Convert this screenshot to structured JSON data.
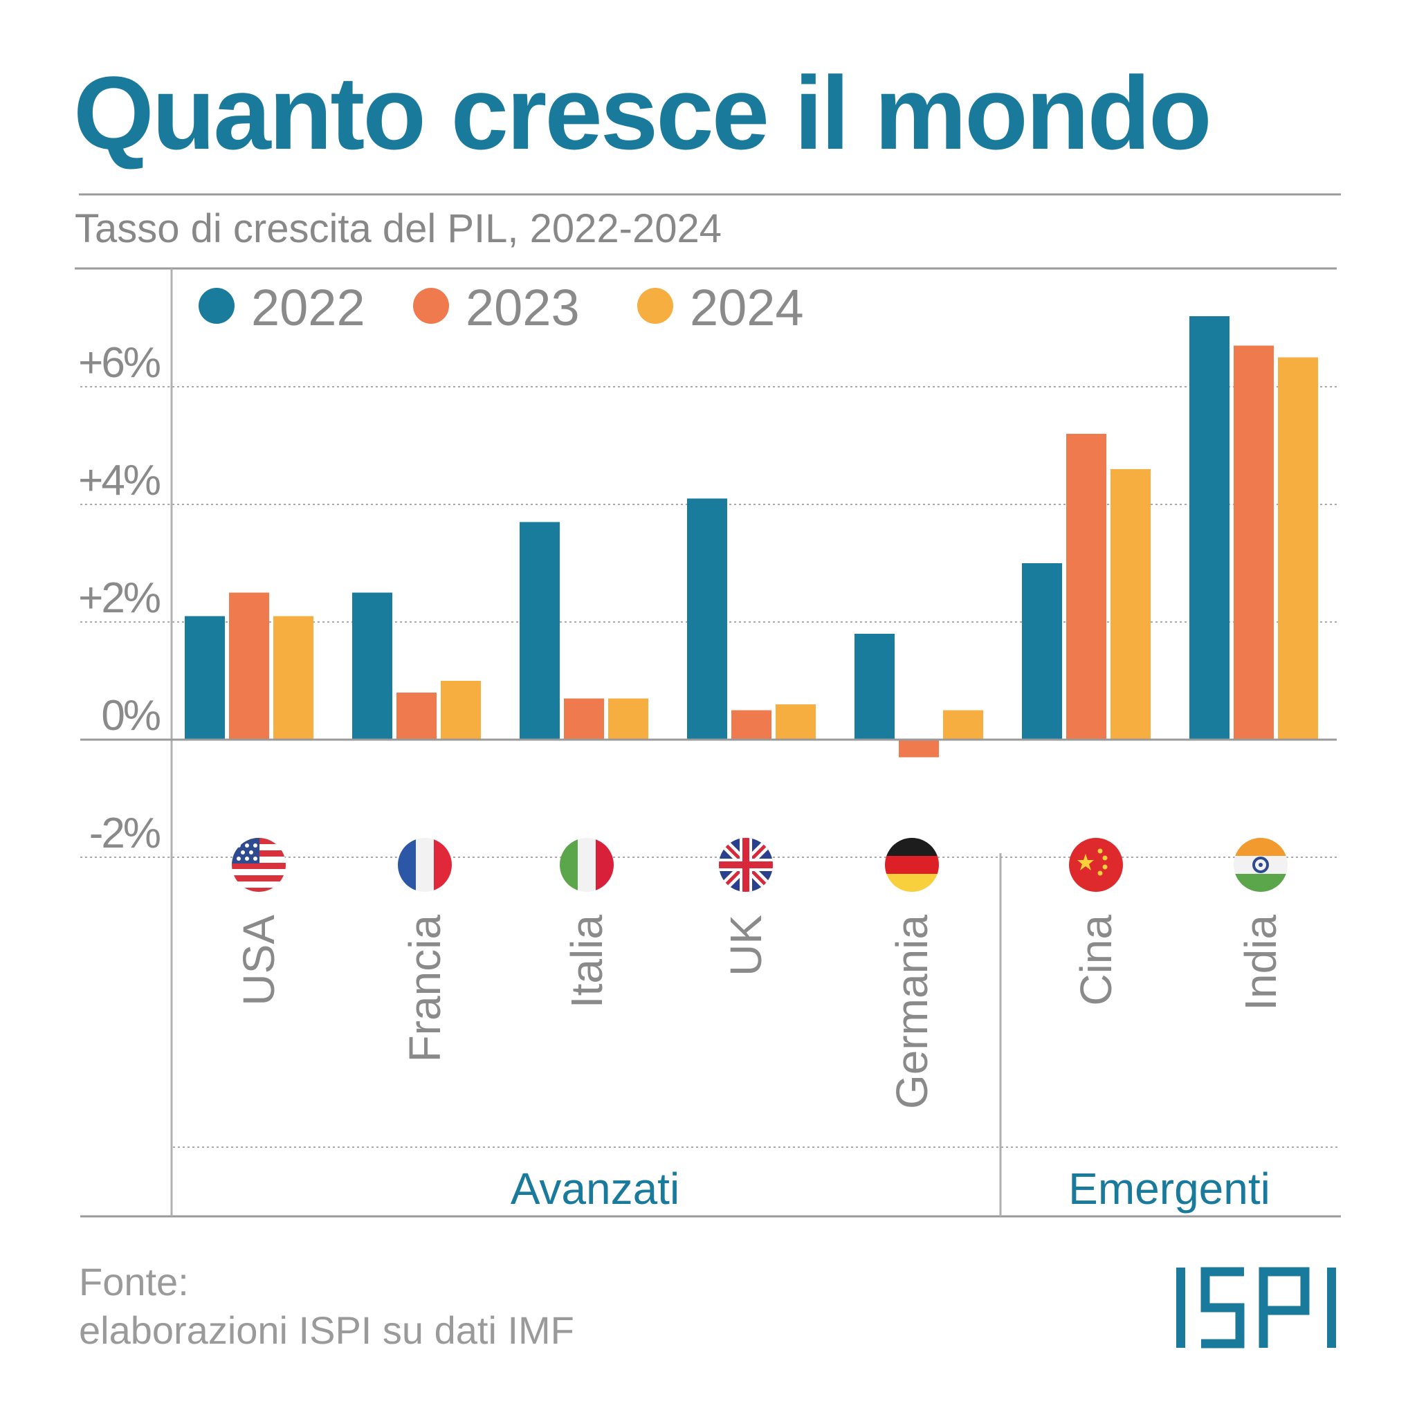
{
  "title": "Quanto cresce il mondo",
  "subtitle": "Tasso di crescita del PIL, 2022-2024",
  "source": {
    "line1": "Fonte:",
    "line2": "elaborazioni ISPI su dati IMF"
  },
  "logo": "ISPI",
  "colors": {
    "title": "#1a7a9b",
    "2022": "#1a7c9c",
    "2023": "#ee7a4e",
    "2024": "#f6ae40",
    "text": "#8a8a8a",
    "group": "#1a7a9b"
  },
  "chart_data": {
    "type": "bar",
    "categories": [
      "USA",
      "Francia",
      "Italia",
      "UK",
      "Germania",
      "Cina",
      "India"
    ],
    "flag_icons": [
      "usa-flag-icon",
      "france-flag-icon",
      "italy-flag-icon",
      "uk-flag-icon",
      "germany-flag-icon",
      "china-flag-icon",
      "india-flag-icon"
    ],
    "series": [
      {
        "name": "2022",
        "color": "#1a7c9c",
        "values": [
          2.1,
          2.5,
          3.7,
          4.1,
          1.8,
          3.0,
          7.2
        ]
      },
      {
        "name": "2023",
        "color": "#ee7a4e",
        "values": [
          2.5,
          0.8,
          0.7,
          0.5,
          -0.3,
          5.2,
          6.7
        ]
      },
      {
        "name": "2024",
        "color": "#f6ae40",
        "values": [
          2.1,
          1.0,
          0.7,
          0.6,
          0.5,
          4.6,
          6.5
        ]
      }
    ],
    "yticks": [
      -2,
      0,
      2,
      4,
      6
    ],
    "ytick_labels": [
      "-2%",
      "0%",
      "+2%",
      "+4%",
      "+6%"
    ],
    "ylim": [
      -2,
      7.5
    ],
    "groups": [
      {
        "label": "Avanzati",
        "members": [
          "USA",
          "Francia",
          "Italia",
          "UK",
          "Germania"
        ]
      },
      {
        "label": "Emergenti",
        "members": [
          "Cina",
          "India"
        ]
      }
    ],
    "legend_position": "top-left",
    "grid": true
  }
}
